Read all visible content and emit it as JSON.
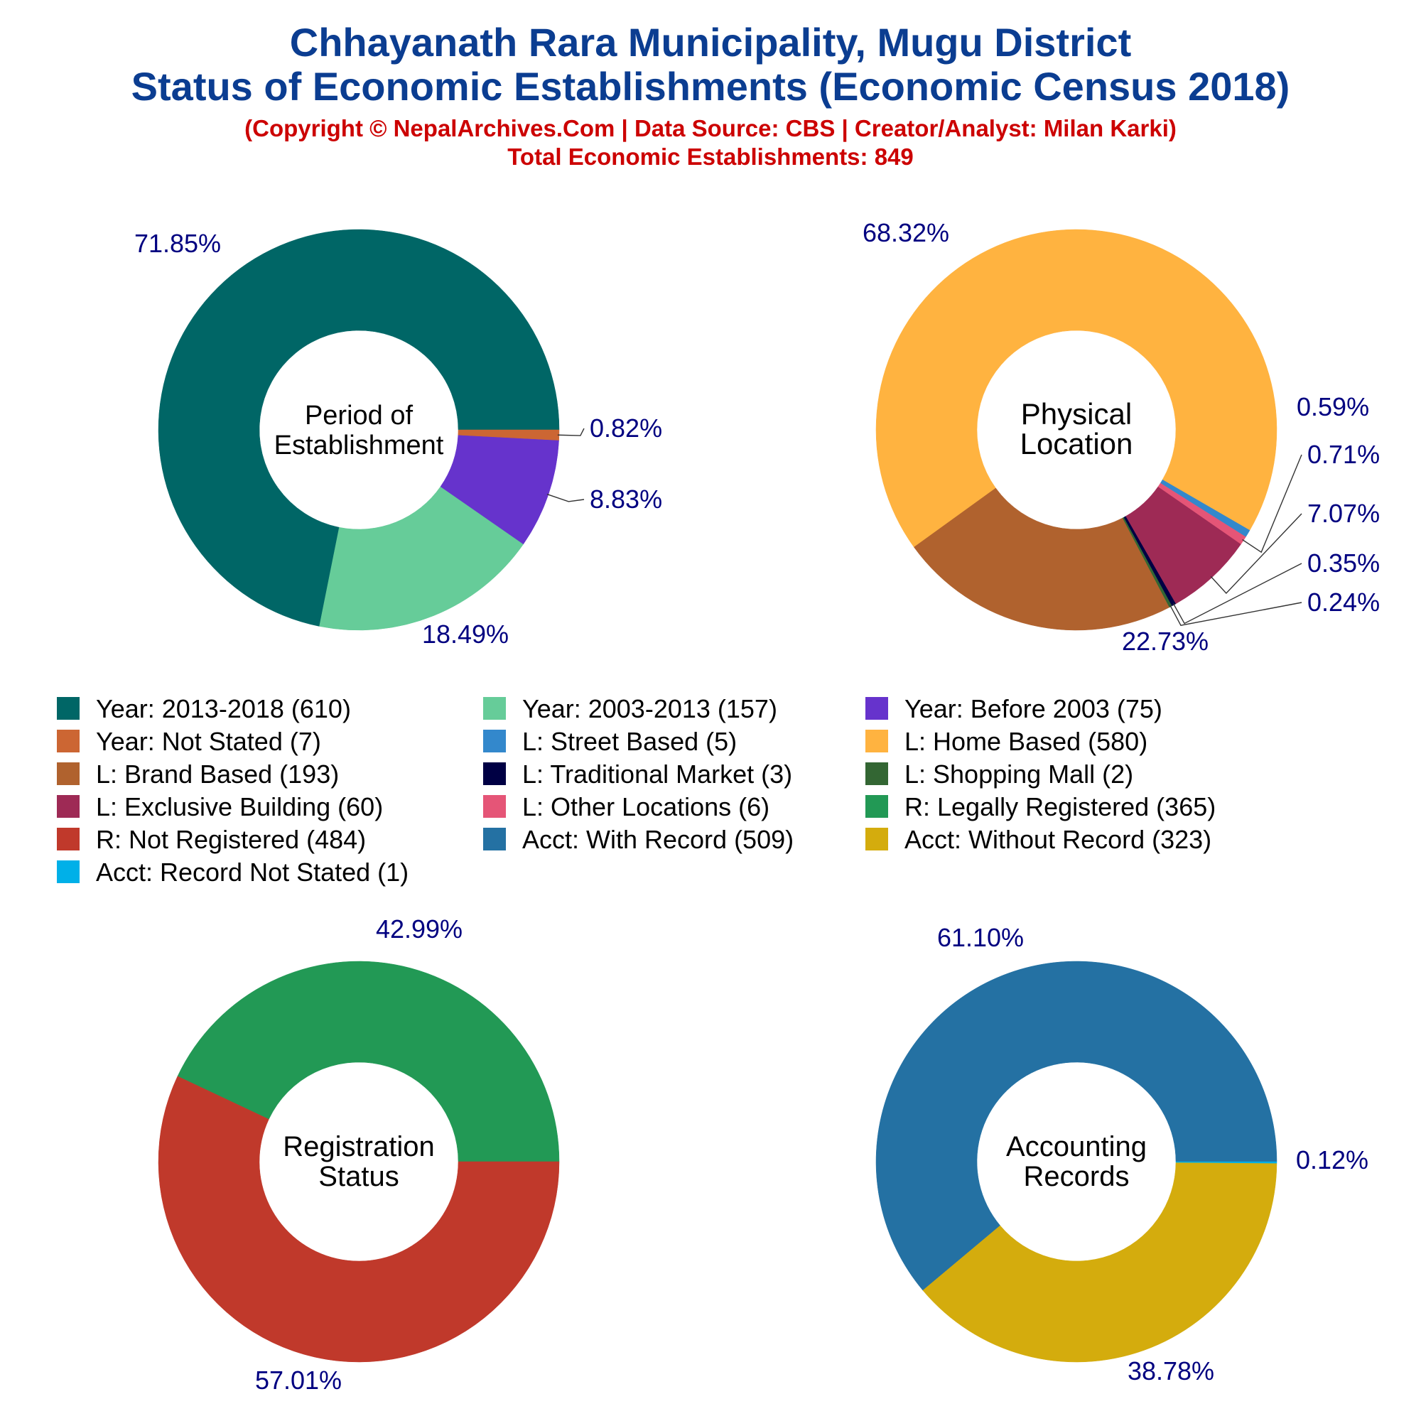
{
  "titles": {
    "line1": "Chhayanath Rara Municipality, Mugu District",
    "line2": "Status of Economic Establishments (Economic Census 2018)",
    "copyright": "(Copyright © NepalArchives.Com | Data Source: CBS | Creator/Analyst: Milan Karki)",
    "total": "Total Economic Establishments: 849"
  },
  "colors": {
    "title": "#0b3d91",
    "subtitle": "#cc0000",
    "labels": "#000080",
    "center_text": "#000000"
  },
  "chart_data": [
    {
      "type": "pie",
      "center_label": [
        "Period of",
        "Establishment"
      ],
      "slices": [
        {
          "label": "Year: 2013-2018",
          "value": 610,
          "percent": "71.85%",
          "color": "#006666"
        },
        {
          "label": "Year: 2003-2013",
          "value": 157,
          "percent": "18.49%",
          "color": "#66cc99"
        },
        {
          "label": "Year: Before 2003",
          "value": 75,
          "percent": "8.83%",
          "color": "#6633cc"
        },
        {
          "label": "Year: Not Stated",
          "value": 7,
          "percent": "0.82%",
          "color": "#cc6633"
        }
      ]
    },
    {
      "type": "pie",
      "center_label": [
        "Physical",
        "Location"
      ],
      "slices": [
        {
          "label": "L: Home Based",
          "value": 580,
          "percent": "68.32%",
          "color": "#ffb340"
        },
        {
          "label": "L: Brand Based",
          "value": 193,
          "percent": "22.73%",
          "color": "#b0622e"
        },
        {
          "label": "L: Shopping Mall",
          "value": 2,
          "percent": "0.24%",
          "color": "#336633"
        },
        {
          "label": "L: Traditional Market",
          "value": 3,
          "percent": "0.35%",
          "color": "#000044"
        },
        {
          "label": "L: Exclusive Building",
          "value": 60,
          "percent": "7.07%",
          "color": "#9e2a55"
        },
        {
          "label": "L: Other Locations",
          "value": 6,
          "percent": "0.71%",
          "color": "#e55577"
        },
        {
          "label": "L: Street Based",
          "value": 5,
          "percent": "0.59%",
          "color": "#3388cc"
        }
      ]
    },
    {
      "type": "pie",
      "center_label": [
        "Registration",
        "Status"
      ],
      "slices": [
        {
          "label": "R: Legally Registered",
          "value": 365,
          "percent": "42.99%",
          "color": "#229955"
        },
        {
          "label": "R: Not Registered",
          "value": 484,
          "percent": "57.01%",
          "color": "#c0392b"
        }
      ]
    },
    {
      "type": "pie",
      "center_label": [
        "Accounting",
        "Records"
      ],
      "slices": [
        {
          "label": "Acct: With Record",
          "value": 509,
          "percent": "61.10%",
          "color": "#2471a3"
        },
        {
          "label": "Acct: Without Record",
          "value": 323,
          "percent": "38.78%",
          "color": "#d4ac0d"
        },
        {
          "label": "Acct: Record Not Stated",
          "value": 1,
          "percent": "0.12%",
          "color": "#00b0e8"
        }
      ]
    }
  ],
  "legend": [
    {
      "text": "Year: 2013-2018 (610)",
      "color": "#006666"
    },
    {
      "text": "Year: 2003-2013 (157)",
      "color": "#66cc99"
    },
    {
      "text": "Year: Before 2003 (75)",
      "color": "#6633cc"
    },
    {
      "text": "Year: Not Stated (7)",
      "color": "#cc6633"
    },
    {
      "text": "L: Street Based (5)",
      "color": "#3388cc"
    },
    {
      "text": "L: Home Based (580)",
      "color": "#ffb340"
    },
    {
      "text": "L: Brand Based (193)",
      "color": "#b0622e"
    },
    {
      "text": "L: Traditional Market (3)",
      "color": "#000044"
    },
    {
      "text": "L: Shopping Mall (2)",
      "color": "#336633"
    },
    {
      "text": "L: Exclusive Building (60)",
      "color": "#9e2a55"
    },
    {
      "text": "L: Other Locations (6)",
      "color": "#e55577"
    },
    {
      "text": "R: Legally Registered (365)",
      "color": "#229955"
    },
    {
      "text": "R: Not Registered (484)",
      "color": "#c0392b"
    },
    {
      "text": "Acct: With Record (509)",
      "color": "#2471a3"
    },
    {
      "text": "Acct: Without Record (323)",
      "color": "#d4ac0d"
    },
    {
      "text": "Acct: Record Not Stated (1)",
      "color": "#00b0e8"
    }
  ]
}
